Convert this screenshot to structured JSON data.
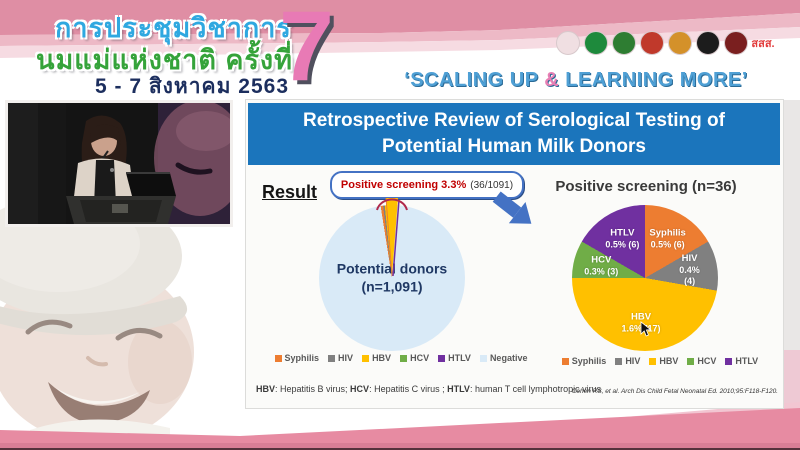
{
  "header": {
    "thai_title_line1": "การประชุมวิชาการ",
    "thai_title_line2": "นมแม่แห่งชาติ ครั้งที่",
    "thai_date": "5 - 7 สิงหาคม 2563",
    "edition_number": "7",
    "tagline_parts": {
      "open": "‘SCALING UP ",
      "amp": "&",
      "close": " LEARNING MORE’"
    },
    "tagline_color": "#4fa0d5",
    "amp_color": "#e87fb4",
    "logos": [
      {
        "name": "mother-child-foundation-logo",
        "color": "#f0dfe2"
      },
      {
        "name": "health-ministry-logo",
        "color": "#1e8a3c"
      },
      {
        "name": "medical-association-logo",
        "color": "#2e7d32"
      },
      {
        "name": "royal-college-emblem-logo",
        "color": "#c0392b"
      },
      {
        "name": "university-crest-logo",
        "color": "#d4912a"
      },
      {
        "name": "pediatric-society-logo",
        "color": "#1c1c1c"
      },
      {
        "name": "royal-institute-logo",
        "color": "#7a1f1f"
      },
      {
        "name": "thaihealth-logo",
        "color": "#e23b3b",
        "text": "สสส."
      }
    ]
  },
  "slide": {
    "title": "Retrospective Review of Serological Testing of Potential Human Milk Donors",
    "result_label": "Result",
    "callout": {
      "highlight": "Positive screening 3.3%",
      "detail": "(36/1091)"
    },
    "right_chart_title": "Positive screening (n=36)",
    "footnote_segments": [
      {
        "b": "HBV"
      },
      {
        "t": ": Hepatitis B virus; "
      },
      {
        "b": "HCV"
      },
      {
        "t": ": Hepatitis C virus ; "
      },
      {
        "b": "HTLV"
      },
      {
        "t": ": human T cell lymphotropic virus"
      }
    ],
    "citation": "Cohen RS, et al. Arch Dis Child Fetal Neonatal Ed. 2010;95:F118-F120."
  },
  "chart_data": [
    {
      "type": "pie",
      "title": "Potential donors pie",
      "center_label": "Potential donors\n(n=1,091)",
      "categories": [
        "Syphilis",
        "HIV",
        "HBV",
        "HCV",
        "HTLV",
        "Negative"
      ],
      "values": [
        6,
        4,
        17,
        3,
        6,
        1055
      ],
      "colors": [
        "#ED7D31",
        "#808080",
        "#FFC000",
        "#70AD47",
        "#7030A0",
        "#D9EAF7"
      ],
      "start_angle": -9,
      "annotation": "Positive screening 3.3% (36/1091)",
      "legend_position": "bottom"
    },
    {
      "type": "pie",
      "title": "Positive screening (n=36)",
      "categories": [
        "Syphilis",
        "HIV",
        "HBV",
        "HCV",
        "HTLV"
      ],
      "values": [
        6,
        4,
        17,
        3,
        6
      ],
      "slice_labels": [
        "0.5% (6)",
        "0.4% (4)",
        "1.6% (17)",
        "0.3% (3)",
        "0.5% (6)"
      ],
      "colors": [
        "#ED7D31",
        "#808080",
        "#FFC000",
        "#70AD47",
        "#7030A0"
      ],
      "start_angle": 0,
      "label_r": 0.62,
      "legend_position": "bottom"
    }
  ],
  "legend_left": [
    {
      "label": "Syphilis",
      "color": "#ED7D31"
    },
    {
      "label": "HIV",
      "color": "#808080"
    },
    {
      "label": "HBV",
      "color": "#FFC000"
    },
    {
      "label": "HCV",
      "color": "#70AD47"
    },
    {
      "label": "HTLV",
      "color": "#7030A0"
    },
    {
      "label": "Negative",
      "color": "#D9EAF7"
    }
  ],
  "legend_right": [
    {
      "label": "Syphilis",
      "color": "#ED7D31"
    },
    {
      "label": "HIV",
      "color": "#808080"
    },
    {
      "label": "HBV",
      "color": "#FFC000"
    },
    {
      "label": "HCV",
      "color": "#70AD47"
    },
    {
      "label": "HTLV",
      "color": "#7030A0"
    }
  ],
  "colors": {
    "banner_blue": "#1b75bc",
    "callout_red": "#c00000",
    "pink_band_dark": "#df8ea4",
    "pink_band_mid": "#edb9c6",
    "pink_band_light": "#f6dbe2",
    "bottom_band": "#e78ba2",
    "arrow_blue": "#4472c4"
  }
}
